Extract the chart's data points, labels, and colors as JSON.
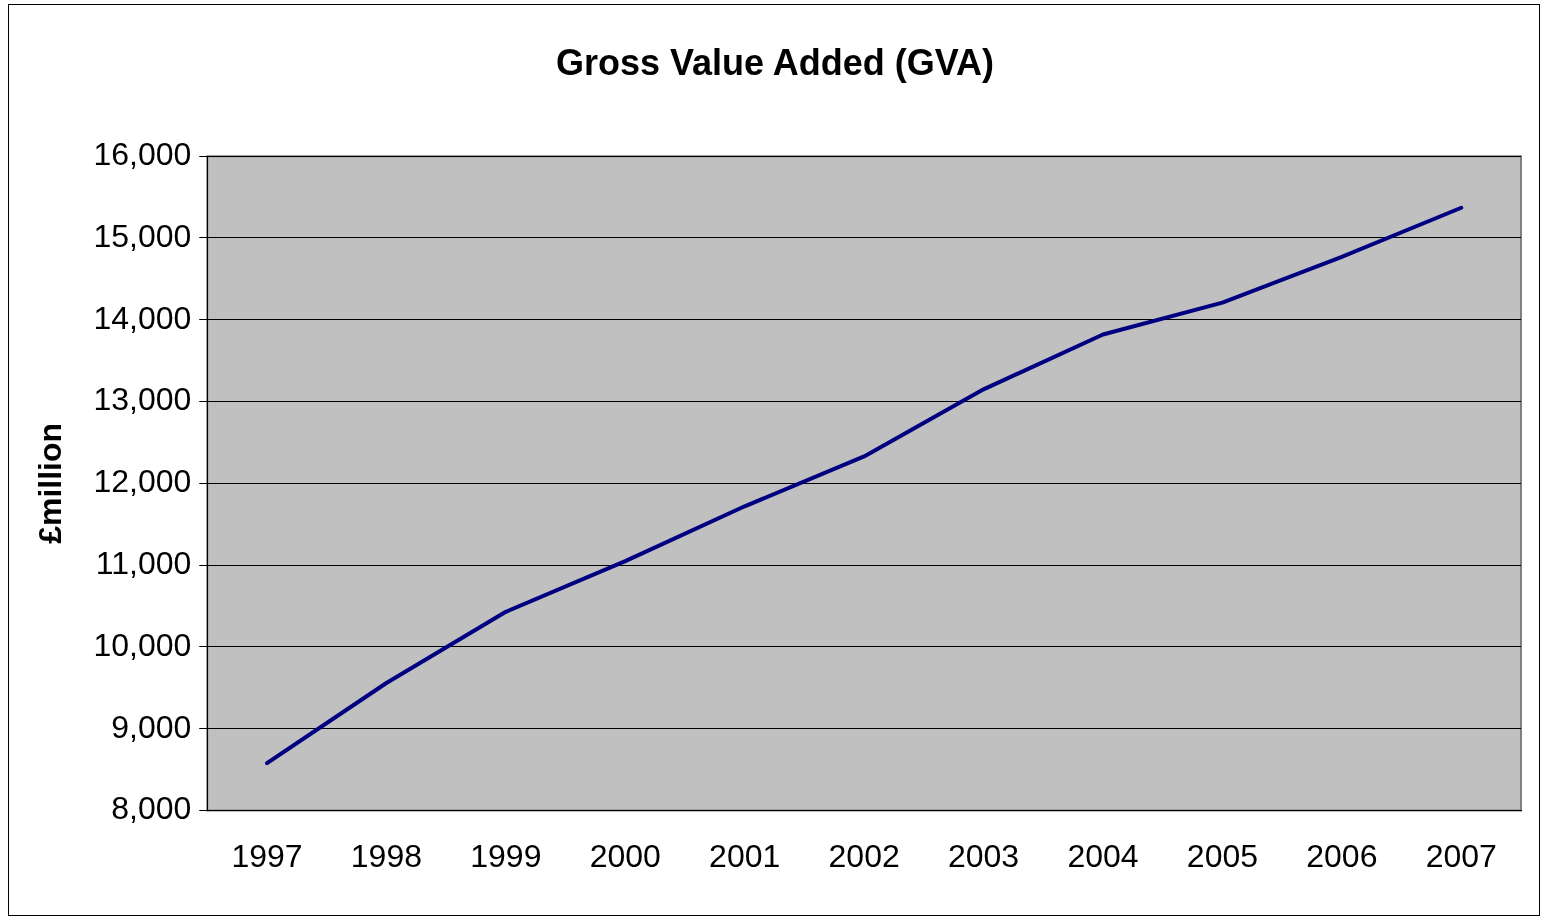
{
  "chart_data": {
    "type": "line",
    "title": "Gross Value Added (GVA)",
    "ylabel": "£million",
    "categories": [
      "1997",
      "1998",
      "1999",
      "2000",
      "2001",
      "2002",
      "2003",
      "2004",
      "2005",
      "2006",
      "2007"
    ],
    "series": [
      {
        "color": "#000080",
        "values": [
          8580,
          9560,
          10430,
          11050,
          11720,
          12330,
          13150,
          13820,
          14210,
          14770,
          15370
        ]
      }
    ],
    "ylim": [
      8000,
      16000
    ],
    "yticks": [
      {
        "value": 8000,
        "label": "8,000"
      },
      {
        "value": 9000,
        "label": "9,000"
      },
      {
        "value": 10000,
        "label": "10,000"
      },
      {
        "value": 11000,
        "label": "11,000"
      },
      {
        "value": 12000,
        "label": "12,000"
      },
      {
        "value": 13000,
        "label": "13,000"
      },
      {
        "value": 14000,
        "label": "14,000"
      },
      {
        "value": 15000,
        "label": "15,000"
      },
      {
        "value": 16000,
        "label": "16,000"
      }
    ],
    "grid": "y",
    "legend": false,
    "marker": "none",
    "line_style": "solid"
  }
}
